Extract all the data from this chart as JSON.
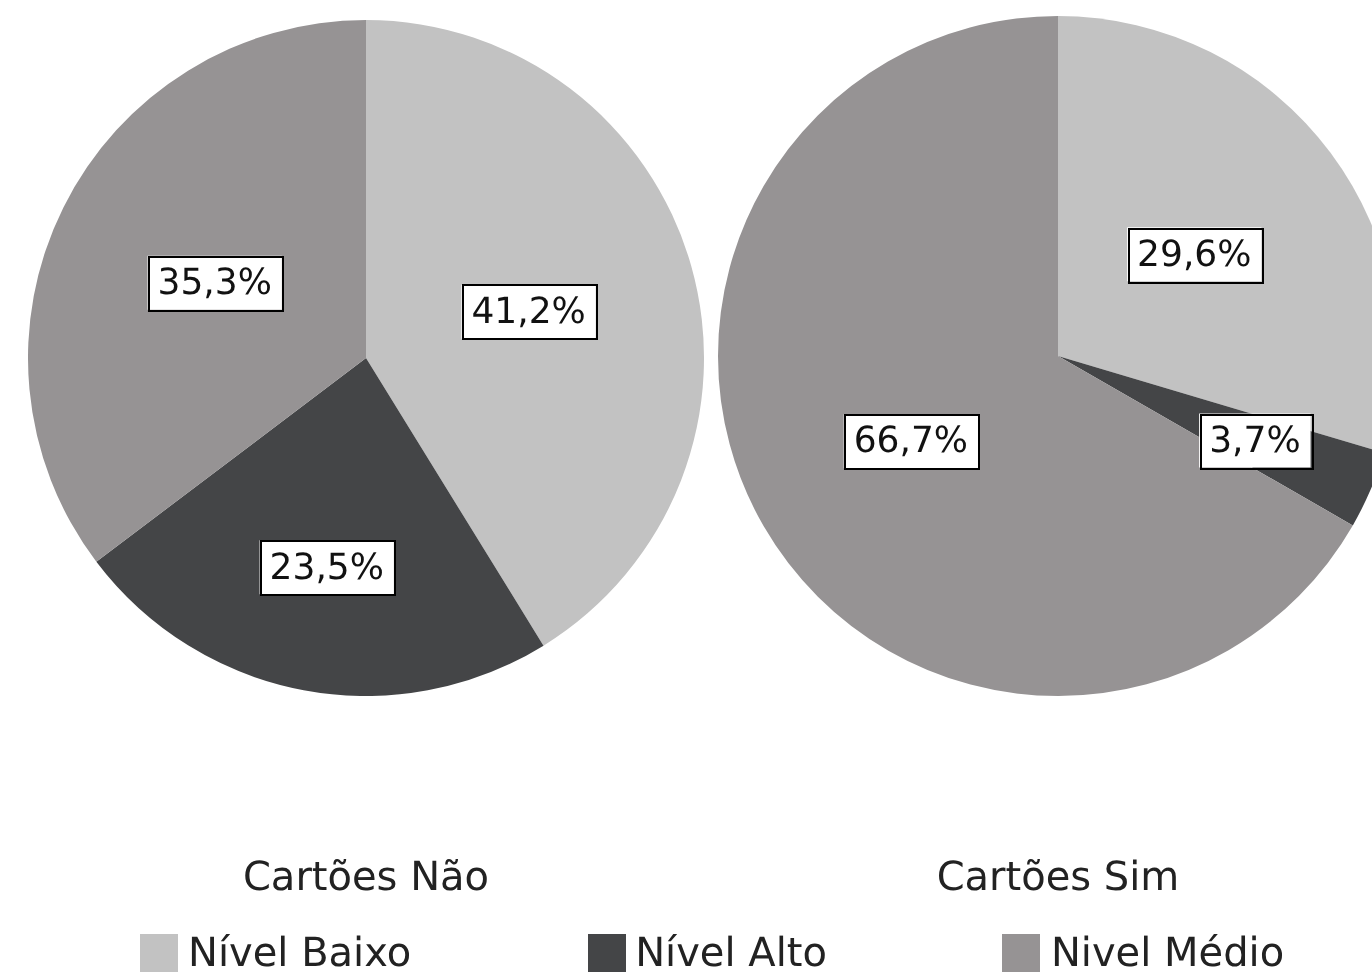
{
  "chart_data": {
    "type": "pie",
    "categories": [
      "Nível Baixo",
      "Nível Alto",
      "Nivel Médio"
    ],
    "colors": [
      "#c2c2c2",
      "#444547",
      "#969394"
    ],
    "legend": "bottom",
    "series": [
      {
        "name": "Cartões Não",
        "values": [
          41.2,
          23.5,
          35.3
        ],
        "value_labels": [
          "41,2%",
          "23,5%",
          "35,3%"
        ]
      },
      {
        "name": "Cartões Sim",
        "values": [
          29.6,
          3.7,
          66.7
        ],
        "value_labels": [
          "29,6%",
          "3,7%",
          "66,7%"
        ]
      }
    ]
  }
}
